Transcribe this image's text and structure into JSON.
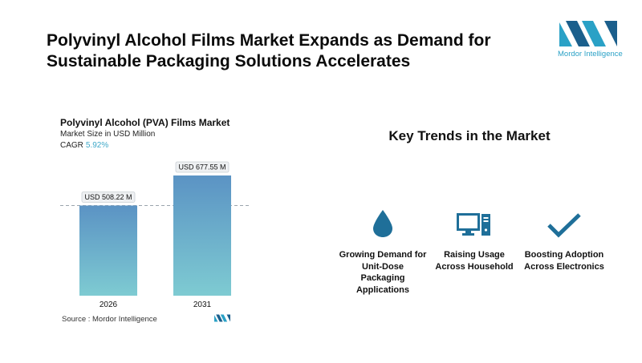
{
  "headline": "Polyvinyl Alcohol Films Market Expands as Demand for Sustainable Packaging Solutions Accelerates",
  "logo": {
    "text": "Mordor Intelligence",
    "color": "#2aa1c6"
  },
  "chart": {
    "title": "Polyvinyl Alcohol (PVA) Films Market",
    "subtitle": "Market Size in USD Million",
    "cagr_label": "CAGR",
    "cagr_value": "5.92%",
    "source": "Source :  Mordor Intelligence"
  },
  "chart_data": {
    "type": "bar",
    "categories": [
      "2026",
      "2031"
    ],
    "values": [
      508.22,
      677.55
    ],
    "data_labels": [
      "USD 508.22 M",
      "USD 677.55 M"
    ],
    "unit": "USD Million",
    "reference_line": 508.22,
    "bar_colors": {
      "top": "#5b93c4",
      "bottom": "#7ecbd2"
    }
  },
  "trends": {
    "title": "Key Trends in the Market",
    "items": [
      {
        "icon": "water-drop-icon",
        "label": "Growing Demand for Unit-Dose Packaging Applications"
      },
      {
        "icon": "computer-icon",
        "label": "Raising Usage Across Household"
      },
      {
        "icon": "checkmark-icon",
        "label": "Boosting Adoption Across Electronics"
      }
    ],
    "icon_color": "#1f6f99"
  }
}
